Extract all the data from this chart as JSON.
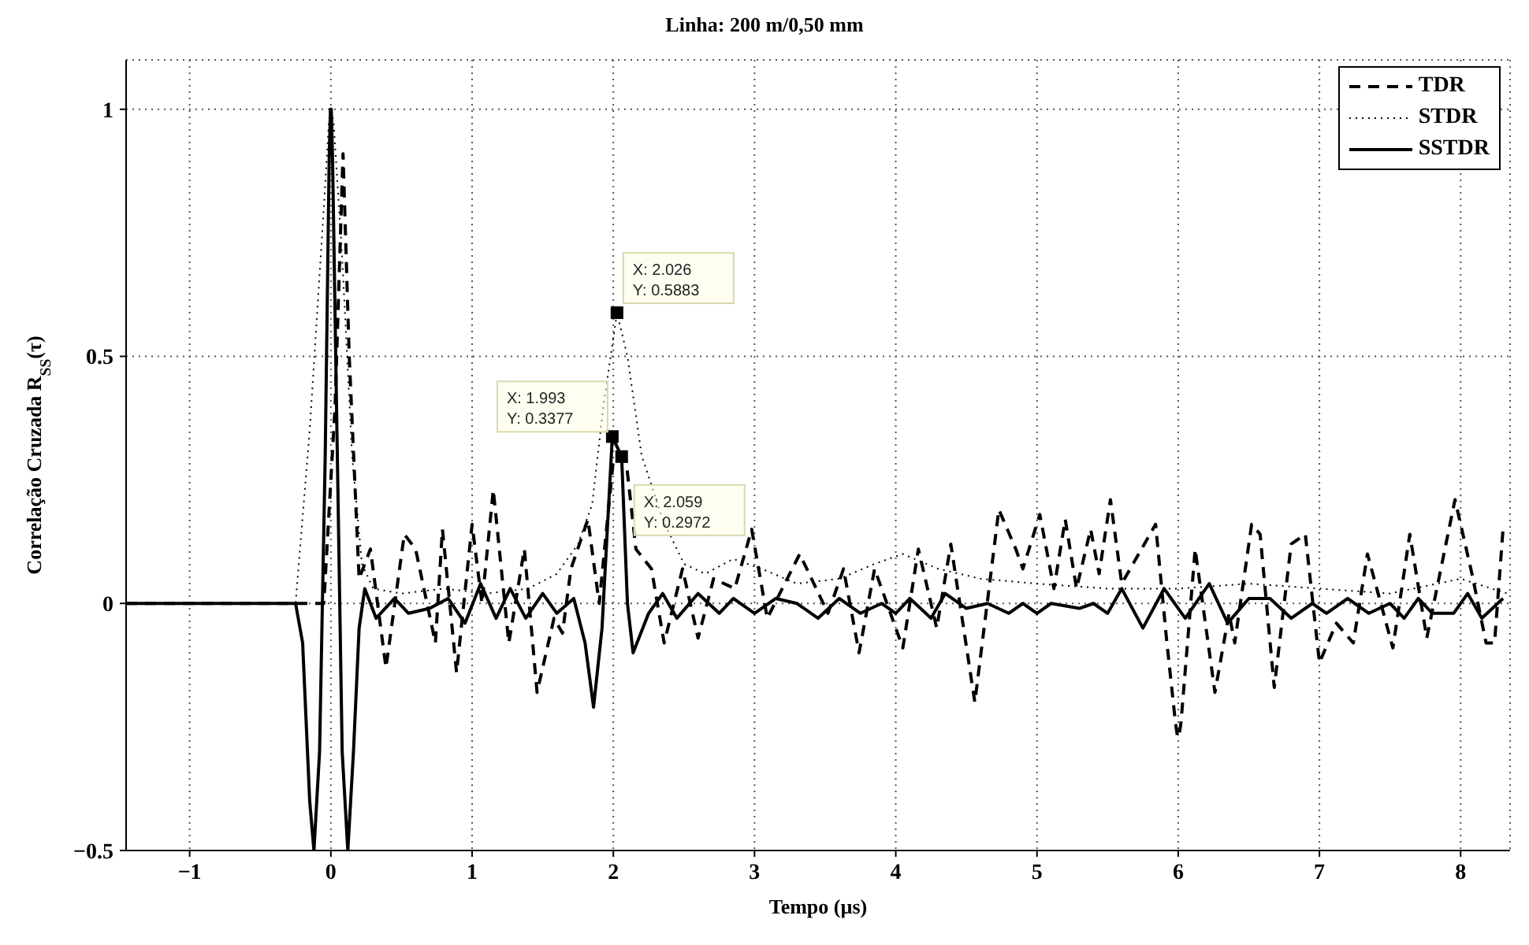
{
  "chart_data": {
    "type": "line",
    "title": "Linha: 200 m/0,50 mm",
    "xlabel": "Tempo (µs)",
    "ylabel": "Correlação Cruzada R$_{SS}$(τ)",
    "xlim": [
      -1.45,
      8.35
    ],
    "ylim": [
      -0.5,
      1.1
    ],
    "xticks": [
      -1,
      0,
      1,
      2,
      3,
      4,
      5,
      6,
      7,
      8
    ],
    "yticks": [
      -0.5,
      0,
      0.5,
      1
    ],
    "grid": true,
    "legend": "top right",
    "marker": "none",
    "series": [
      {
        "name": "TDR",
        "color": "#000000",
        "line_style": "dashed",
        "x": [
          -1.45,
          -0.05,
          0.03,
          0.086,
          0.13,
          0.2,
          0.28,
          0.39,
          0.52,
          0.6,
          0.74,
          0.79,
          0.89,
          1.0,
          1.07,
          1.15,
          1.26,
          1.37,
          1.46,
          1.58,
          1.64,
          1.7,
          1.82,
          1.9,
          2.0,
          2.09,
          2.16,
          2.27,
          2.36,
          2.49,
          2.6,
          2.71,
          2.86,
          2.98,
          3.09,
          3.32,
          3.52,
          3.63,
          3.74,
          3.85,
          4.05,
          4.16,
          4.29,
          4.39,
          4.56,
          4.73,
          4.85,
          4.9,
          5.02,
          5.12,
          5.2,
          5.28,
          5.38,
          5.44,
          5.52,
          5.6,
          5.68,
          5.84,
          5.92,
          5.98,
          5.995,
          6.005,
          6.02,
          6.12,
          6.26,
          6.36,
          6.4,
          6.52,
          6.58,
          6.68,
          6.8,
          6.9,
          7.0,
          7.12,
          7.24,
          7.34,
          7.52,
          7.64,
          7.76,
          7.96,
          8.08,
          8.18,
          8.24,
          8.3
        ],
        "values": [
          0,
          0,
          0.4,
          0.91,
          0.5,
          0.05,
          0.11,
          -0.13,
          0.14,
          0.11,
          -0.08,
          0.15,
          -0.14,
          0.16,
          0,
          0.23,
          -0.08,
          0.11,
          -0.18,
          -0.03,
          -0.06,
          0.07,
          0.17,
          0,
          0.29,
          0.29,
          0.11,
          0.07,
          -0.08,
          0.07,
          -0.07,
          0.05,
          0.03,
          0.15,
          -0.03,
          0.1,
          -0.02,
          0.07,
          -0.1,
          0.07,
          -0.09,
          0.11,
          -0.05,
          0.12,
          -0.2,
          0.19,
          0.11,
          0.07,
          0.18,
          0.03,
          0.17,
          0.03,
          0.15,
          0.06,
          0.21,
          0.04,
          0.08,
          0.16,
          -0.08,
          -0.24,
          -0.27,
          -0.27,
          -0.24,
          0.11,
          -0.18,
          -0.02,
          -0.08,
          0.16,
          0.14,
          -0.17,
          0.12,
          0.14,
          -0.12,
          -0.04,
          -0.08,
          0.1,
          -0.09,
          0.14,
          -0.07,
          0.21,
          0.06,
          -0.08,
          -0.08,
          0.15
        ]
      },
      {
        "name": "STDR",
        "color": "#000000",
        "line_style": "dotted",
        "x": [
          -1.45,
          -0.25,
          -0.15,
          -0.05,
          -0.015,
          -0.004,
          0.004,
          0.02,
          0.08,
          0.15,
          0.22,
          0.3,
          0.5,
          0.8,
          1.1,
          1.4,
          1.6,
          1.75,
          1.85,
          1.93,
          2.026,
          2.1,
          2.2,
          2.35,
          2.5,
          2.65,
          2.85,
          3.05,
          3.3,
          3.6,
          3.85,
          4.05,
          4.3,
          4.6,
          5.0,
          5.5,
          6.0,
          6.5,
          7.0,
          7.5,
          8.0,
          8.33
        ],
        "values": [
          0,
          0,
          0.35,
          0.8,
          0.97,
          1,
          1,
          0.97,
          0.7,
          0.3,
          0.08,
          0.03,
          0.02,
          0.03,
          0.02,
          0.03,
          0.06,
          0.12,
          0.2,
          0.4,
          0.5883,
          0.5,
          0.3,
          0.17,
          0.08,
          0.06,
          0.09,
          0.07,
          0.04,
          0.05,
          0.08,
          0.1,
          0.07,
          0.05,
          0.04,
          0.03,
          0.03,
          0.04,
          0.03,
          0.02,
          0.05,
          0.02
        ]
      },
      {
        "name": "SSTDR",
        "color": "#000000",
        "line_style": "solid",
        "x": [
          -1.45,
          -0.25,
          -0.2,
          -0.15,
          -0.12,
          -0.08,
          -0.04,
          -0.012,
          -0.003,
          0.003,
          0.012,
          0.04,
          0.08,
          0.12,
          0.16,
          0.2,
          0.24,
          0.32,
          0.45,
          0.55,
          0.7,
          0.83,
          0.95,
          1.06,
          1.17,
          1.27,
          1.38,
          1.5,
          1.6,
          1.72,
          1.8,
          1.86,
          1.92,
          1.993,
          2.059,
          2.1,
          2.14,
          2.25,
          2.35,
          2.45,
          2.6,
          2.75,
          2.85,
          3.0,
          3.15,
          3.3,
          3.45,
          3.6,
          3.75,
          3.9,
          4.0,
          4.1,
          4.25,
          4.35,
          4.5,
          4.65,
          4.8,
          4.9,
          5.0,
          5.1,
          5.3,
          5.4,
          5.5,
          5.6,
          5.75,
          5.9,
          6.05,
          6.22,
          6.35,
          6.5,
          6.65,
          6.8,
          6.95,
          7.05,
          7.2,
          7.35,
          7.5,
          7.6,
          7.7,
          7.8,
          7.95,
          8.05,
          8.15,
          8.3
        ],
        "values": [
          0,
          0,
          -0.08,
          -0.4,
          -0.5,
          -0.3,
          0.3,
          0.9,
          1,
          1,
          0.9,
          0.4,
          -0.3,
          -0.5,
          -0.3,
          -0.05,
          0.03,
          -0.03,
          0.01,
          -0.02,
          -0.01,
          0.01,
          -0.04,
          0.04,
          -0.03,
          0.03,
          -0.03,
          0.02,
          -0.02,
          0.01,
          -0.08,
          -0.21,
          -0.05,
          0.3377,
          0.2972,
          0,
          -0.1,
          -0.02,
          0.02,
          -0.03,
          0.02,
          -0.02,
          0.01,
          -0.02,
          0.01,
          0,
          -0.03,
          0.01,
          -0.02,
          0,
          -0.02,
          0.01,
          -0.03,
          0.02,
          -0.01,
          0,
          -0.02,
          0,
          -0.02,
          0,
          -0.01,
          0,
          -0.02,
          0.03,
          -0.05,
          0.03,
          -0.03,
          0.04,
          -0.04,
          0.01,
          0.01,
          -0.03,
          0,
          -0.02,
          0.01,
          -0.02,
          0,
          -0.03,
          0.01,
          -0.02,
          -0.02,
          0.02,
          -0.03,
          0.01
        ]
      }
    ],
    "annotations": [
      {
        "text": "X: 2.026\nY: 0.5883",
        "x": 2.026,
        "y": 0.5883
      },
      {
        "text": "X: 1.993\nY: 0.3377",
        "x": 1.993,
        "y": 0.3377
      },
      {
        "text": "X: 2.059\nY: 0.2972",
        "x": 2.059,
        "y": 0.2972
      }
    ]
  }
}
